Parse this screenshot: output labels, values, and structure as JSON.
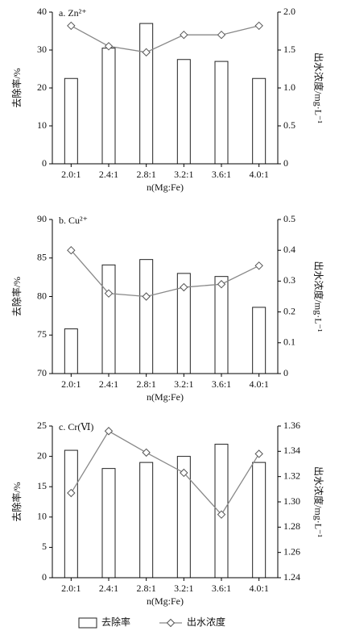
{
  "chart_data": [
    {
      "type": "bar-line",
      "title": "a. Zn²⁺",
      "xlabel": "n(Mg:Fe)",
      "ylabel": "去除率/%",
      "y2label": "出水浓度/mg·L⁻¹",
      "categories": [
        "2.0:1",
        "2.4:1",
        "2.8:1",
        "3.2:1",
        "3.6:1",
        "4.0:1"
      ],
      "series": [
        {
          "type": "bar",
          "color": "#ffffff",
          "values": [
            22.5,
            30.5,
            37,
            27.5,
            27,
            22.5
          ]
        },
        {
          "type": "line",
          "axis": "y2",
          "color": "#888888",
          "values": [
            1.82,
            1.55,
            1.47,
            1.7,
            1.7,
            1.82
          ]
        }
      ],
      "ylim": [
        0,
        40
      ],
      "yticks": [
        0,
        10,
        20,
        30,
        40
      ],
      "y2lim": [
        0,
        2
      ],
      "y2ticks": [
        0,
        0.5,
        {
          "value": 1,
          "label": "1.0"
        },
        1.5,
        {
          "value": 2,
          "label": "2.0"
        }
      ]
    },
    {
      "type": "bar-line",
      "title": "b. Cu²⁺",
      "xlabel": "n(Mg:Fe)",
      "ylabel": "去除率/%",
      "y2label": "出水浓度/mg·L⁻¹",
      "categories": [
        "2.0:1",
        "2.4:1",
        "2.8:1",
        "3.2:1",
        "3.6:1",
        "4.0:1"
      ],
      "series": [
        {
          "type": "bar",
          "color": "#ffffff",
          "values": [
            75.8,
            84.1,
            84.8,
            83,
            82.6,
            78.6
          ]
        },
        {
          "type": "line",
          "axis": "y2",
          "color": "#888888",
          "values": [
            0.4,
            0.26,
            0.25,
            0.28,
            0.29,
            0.35
          ]
        }
      ],
      "ylim": [
        70,
        90
      ],
      "yticks": [
        70,
        75,
        80,
        85,
        90
      ],
      "y2lim": [
        0,
        0.5
      ],
      "y2ticks": [
        0,
        0.1,
        0.2,
        0.3,
        0.4,
        0.5
      ]
    },
    {
      "type": "bar-line",
      "title": "c. Cr(Ⅵ)",
      "xlabel": "n(Mg:Fe)",
      "ylabel": "去除率/%",
      "y2label": "出水浓度/mg·L⁻¹",
      "categories": [
        "2.0:1",
        "2.4:1",
        "2.8:1",
        "3.2:1",
        "3.6:1",
        "4.0:1"
      ],
      "series": [
        {
          "name": "去除率",
          "type": "bar",
          "color": "#ffffff",
          "values": [
            21,
            18,
            19,
            20,
            22,
            19
          ]
        },
        {
          "name": "出水浓度",
          "type": "line",
          "axis": "y2",
          "color": "#888888",
          "values": [
            1.307,
            1.356,
            1.339,
            1.323,
            1.29,
            1.338
          ]
        }
      ],
      "ylim": [
        0,
        25
      ],
      "yticks": [
        0,
        5,
        10,
        15,
        20,
        25
      ],
      "y2lim": [
        1.24,
        1.36
      ],
      "y2ticks": [
        1.24,
        1.26,
        1.28,
        {
          "value": 1.3,
          "label": "1.30"
        },
        1.32,
        1.34,
        1.36
      ]
    }
  ]
}
